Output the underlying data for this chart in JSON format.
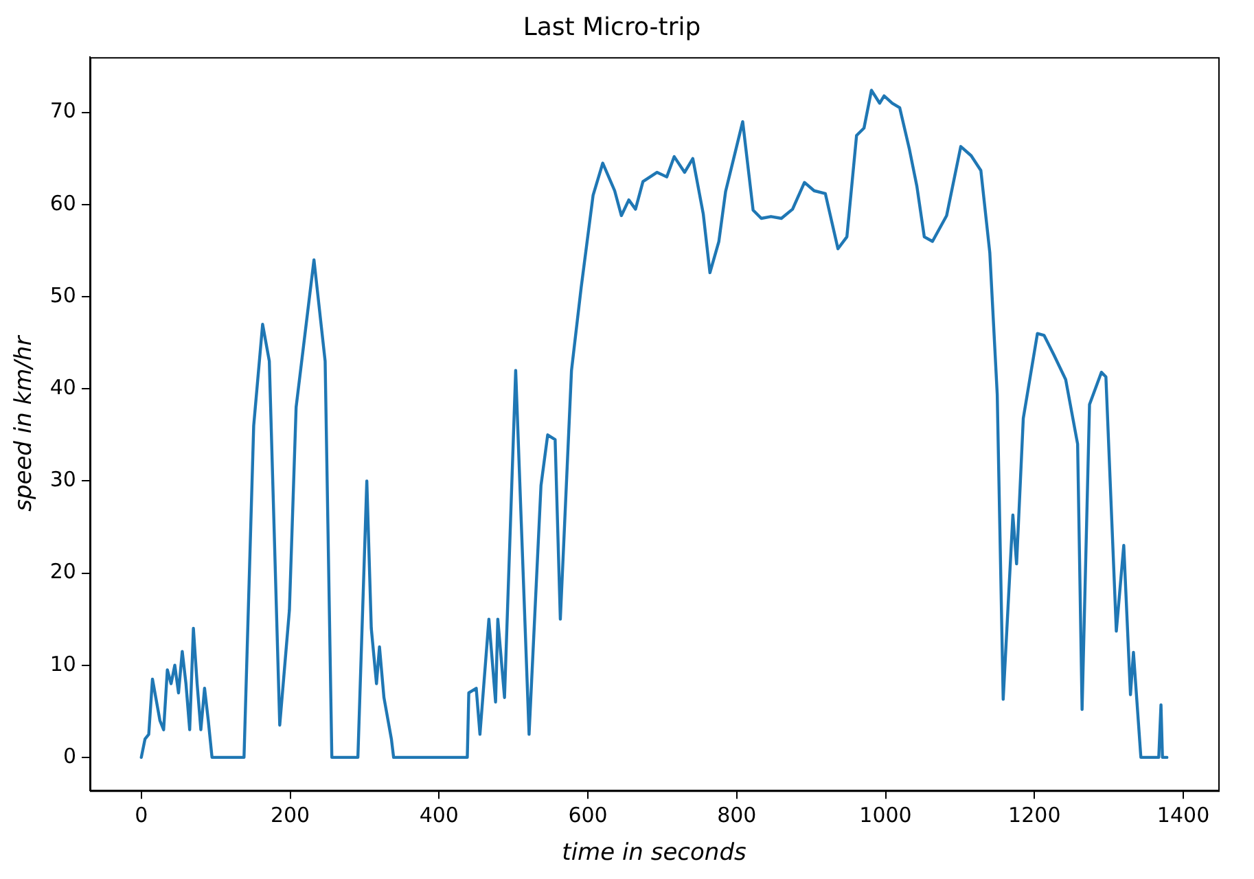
{
  "chart_data": {
    "type": "line",
    "title": "Last Micro-trip",
    "xlabel": "time in seconds",
    "ylabel": "speed in km/hr",
    "x": [
      0,
      5,
      10,
      15,
      25,
      30,
      35,
      40,
      45,
      50,
      55,
      60,
      65,
      70,
      75,
      80,
      85,
      90,
      95,
      138,
      151,
      163,
      172,
      186,
      199,
      208,
      232,
      247,
      256,
      291,
      303,
      309,
      316,
      320,
      326,
      336,
      339,
      438,
      440,
      450,
      455,
      467,
      476,
      479,
      488,
      503,
      521,
      537,
      546,
      556,
      563,
      578,
      591,
      607,
      620,
      636,
      645,
      655,
      664,
      674,
      693,
      706,
      716,
      730,
      741,
      755,
      764,
      776,
      785,
      808,
      822,
      833,
      846,
      860,
      875,
      891,
      904,
      919,
      936,
      948,
      961,
      971,
      981,
      992,
      998,
      1009,
      1019,
      1032,
      1042,
      1052,
      1063,
      1082,
      1101,
      1115,
      1128,
      1140,
      1150,
      1158,
      1171,
      1176,
      1185,
      1204,
      1213,
      1226,
      1242,
      1258,
      1264,
      1274,
      1290,
      1296,
      1310,
      1320,
      1329,
      1333,
      1343,
      1367,
      1370,
      1372,
      1378
    ],
    "series": [
      {
        "color": "#1f77b4",
        "values": [
          0,
          2,
          2.5,
          8.5,
          4,
          3,
          9.5,
          8,
          10,
          7,
          11.5,
          8,
          3,
          14,
          8,
          3,
          7.5,
          4,
          0,
          0,
          36,
          47,
          43,
          3.5,
          16,
          38,
          54,
          43,
          0,
          0,
          30,
          14,
          8,
          12,
          6.5,
          2,
          0,
          0,
          7,
          7.5,
          2.5,
          15,
          6,
          15,
          6.5,
          42,
          2.5,
          29.5,
          35,
          34.5,
          15,
          42,
          51,
          61,
          64.5,
          61.5,
          58.8,
          60.5,
          59.5,
          62.5,
          63.5,
          63,
          65.2,
          63.5,
          65,
          59,
          52.6,
          56,
          61.4,
          69,
          59.4,
          58.5,
          58.7,
          58.5,
          59.5,
          62.4,
          61.5,
          61.2,
          55.2,
          56.5,
          67.5,
          68.3,
          72.4,
          71,
          71.8,
          71,
          70.5,
          66,
          62,
          56.5,
          56,
          58.8,
          66.3,
          65.3,
          63.7,
          54.8,
          39.4,
          6.3,
          26.3,
          21,
          36.8,
          46,
          45.8,
          43.7,
          41,
          34,
          5.2,
          38.3,
          41.8,
          41.3,
          13.7,
          23,
          6.8,
          11.4,
          0,
          0,
          5.7,
          0,
          0
        ]
      }
    ],
    "xlim": [
      -69,
      1447
    ],
    "ylim": [
      -3.6,
      76
    ],
    "xticks": [
      0,
      200,
      400,
      600,
      800,
      1000,
      1200,
      1400
    ],
    "yticks": [
      0,
      10,
      20,
      30,
      40,
      50,
      60,
      70
    ],
    "grid": false,
    "legend": false,
    "marker": "none",
    "line_style": "solid"
  }
}
